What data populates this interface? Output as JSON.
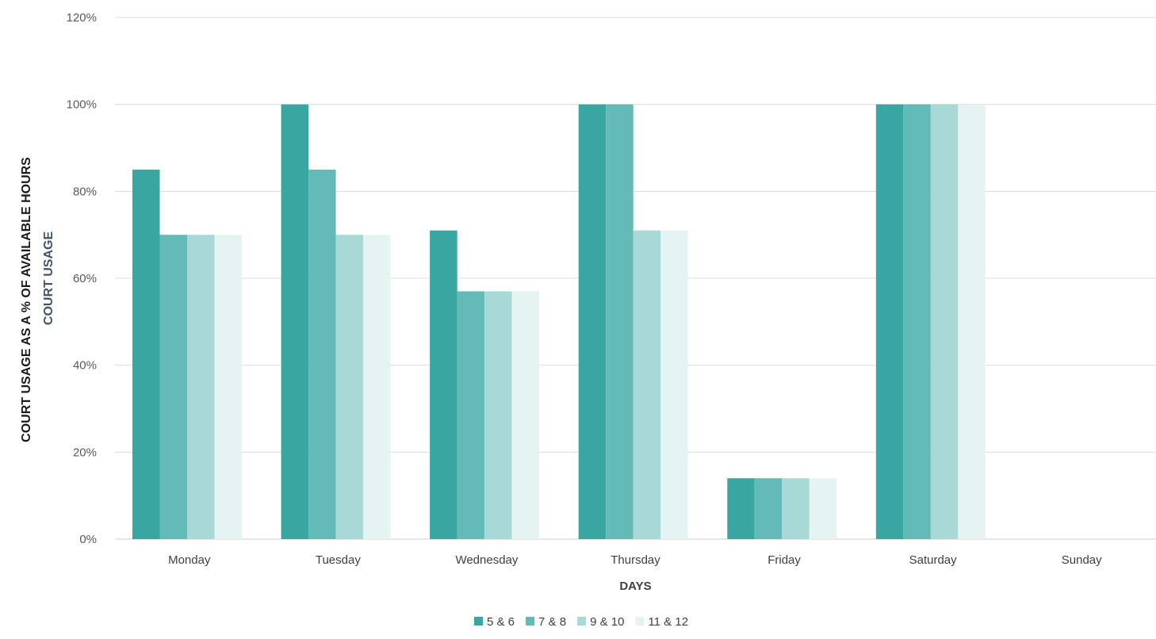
{
  "chart_data": {
    "type": "bar",
    "title": "",
    "xlabel": "DAYS",
    "ylabel": "COURT USAGE AS A % OF AVAILABLE HOURS",
    "ylabel_secondary": "COURT USAGE",
    "categories": [
      "Monday",
      "Tuesday",
      "Wednesday",
      "Thursday",
      "Friday",
      "Saturday",
      "Sunday"
    ],
    "series": [
      {
        "name": "5 & 6",
        "color": "#3aa6a2",
        "values": [
          85,
          100,
          71,
          100,
          14,
          100,
          0
        ]
      },
      {
        "name": "7 & 8",
        "color": "#64bab7",
        "values": [
          70,
          85,
          57,
          100,
          14,
          100,
          0
        ]
      },
      {
        "name": "9 & 10",
        "color": "#a9d9d7",
        "values": [
          70,
          70,
          57,
          71,
          14,
          100,
          0
        ]
      },
      {
        "name": "11 & 12",
        "color": "#e6f3f3",
        "values": [
          70,
          70,
          57,
          71,
          14,
          100,
          0
        ]
      }
    ],
    "ylim": [
      0,
      120
    ],
    "yticks": [
      "0%",
      "20%",
      "40%",
      "60%",
      "80%",
      "100%",
      "120%"
    ],
    "grid": true,
    "legend_position": "bottom"
  }
}
